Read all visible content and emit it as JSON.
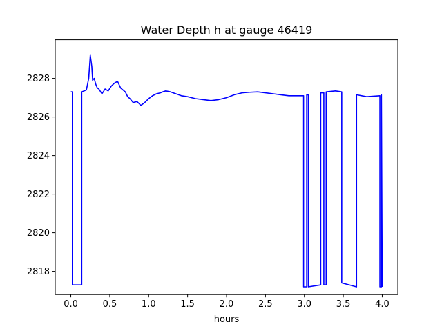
{
  "chart_data": {
    "type": "line",
    "title": "Water Depth h at gauge 46419",
    "xlabel": "hours",
    "ylabel": "",
    "xlim": [
      -0.2,
      4.2
    ],
    "ylim": [
      2816.8,
      2830.0
    ],
    "xticks": [
      0.0,
      0.5,
      1.0,
      1.5,
      2.0,
      2.5,
      3.0,
      3.5,
      4.0
    ],
    "xtick_labels": [
      "0.0",
      "0.5",
      "1.0",
      "1.5",
      "2.0",
      "2.5",
      "3.0",
      "3.5",
      "4.0"
    ],
    "yticks": [
      2818,
      2820,
      2822,
      2824,
      2826,
      2828
    ],
    "ytick_labels": [
      "2818",
      "2820",
      "2822",
      "2824",
      "2826",
      "2828"
    ],
    "grid": false,
    "series": [
      {
        "color": "#0000ff",
        "x": [
          0.0,
          0.02,
          0.02,
          0.14,
          0.14,
          0.2,
          0.23,
          0.25,
          0.27,
          0.28,
          0.3,
          0.32,
          0.34,
          0.36,
          0.4,
          0.44,
          0.48,
          0.52,
          0.56,
          0.6,
          0.64,
          0.7,
          0.73,
          0.76,
          0.8,
          0.85,
          0.9,
          0.95,
          1.0,
          1.05,
          1.1,
          1.15,
          1.18,
          1.22,
          1.28,
          1.35,
          1.42,
          1.5,
          1.6,
          1.7,
          1.8,
          1.9,
          2.0,
          2.1,
          2.2,
          2.3,
          2.4,
          2.5,
          2.6,
          2.7,
          2.8,
          2.9,
          2.99,
          2.99,
          3.03,
          3.03,
          3.05,
          3.05,
          3.21,
          3.21,
          3.25,
          3.25,
          3.28,
          3.28,
          3.4,
          3.48,
          3.48,
          3.67,
          3.67,
          3.8,
          3.97,
          3.97,
          3.99,
          3.99,
          4.0
        ],
        "y": [
          2827.3,
          2827.3,
          2817.3,
          2817.3,
          2827.3,
          2827.4,
          2828.0,
          2829.2,
          2828.6,
          2827.9,
          2828.0,
          2827.7,
          2827.5,
          2827.45,
          2827.2,
          2827.45,
          2827.35,
          2827.6,
          2827.75,
          2827.85,
          2827.5,
          2827.3,
          2827.05,
          2826.95,
          2826.75,
          2826.8,
          2826.6,
          2826.75,
          2826.95,
          2827.1,
          2827.2,
          2827.25,
          2827.3,
          2827.35,
          2827.3,
          2827.2,
          2827.1,
          2827.05,
          2826.95,
          2826.9,
          2826.85,
          2826.9,
          2827.0,
          2827.15,
          2827.25,
          2827.28,
          2827.3,
          2827.25,
          2827.2,
          2827.15,
          2827.1,
          2827.1,
          2827.1,
          2817.2,
          2817.2,
          2827.15,
          2827.15,
          2817.2,
          2817.3,
          2827.25,
          2827.25,
          2817.3,
          2817.3,
          2827.3,
          2827.35,
          2827.3,
          2817.4,
          2817.2,
          2827.15,
          2827.05,
          2827.1,
          2817.2,
          2817.2,
          2827.15,
          2817.2
        ]
      }
    ]
  }
}
